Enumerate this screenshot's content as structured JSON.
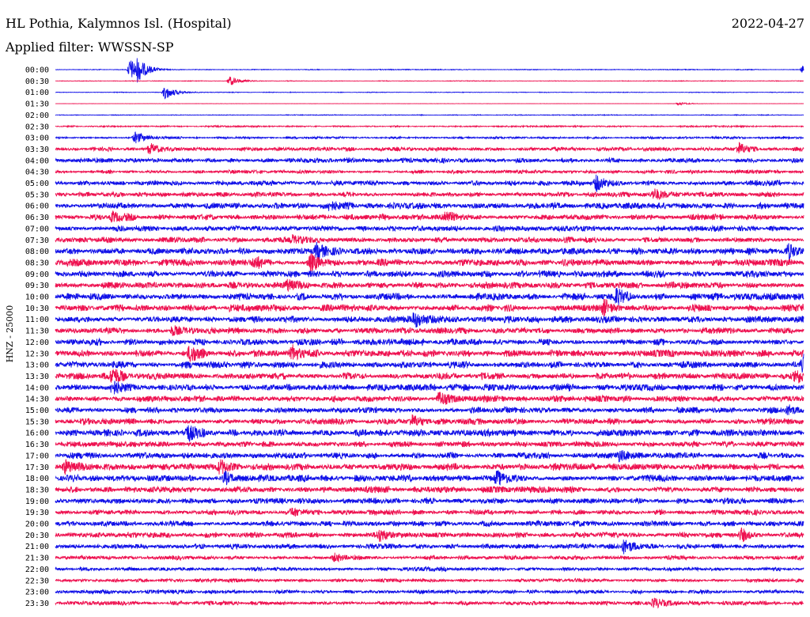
{
  "header": {
    "station": "HL Pothia, Kalymnos Isl. (Hospital)",
    "date": "2022-04-27",
    "filter": "Applied filter: WWSSN-SP"
  },
  "chart_data": {
    "type": "line",
    "title": "HL Pothia, Kalymnos Isl. (Hospital)",
    "ylabel": "HNZ - 25000",
    "rows": [
      "00:00",
      "00:30",
      "01:00",
      "01:30",
      "02:00",
      "02:30",
      "03:00",
      "03:30",
      "04:00",
      "04:30",
      "05:00",
      "05:30",
      "06:00",
      "06:30",
      "07:00",
      "07:30",
      "08:00",
      "08:30",
      "09:00",
      "09:30",
      "10:00",
      "10:30",
      "11:00",
      "11:30",
      "12:00",
      "12:30",
      "13:00",
      "13:30",
      "14:00",
      "14:30",
      "15:00",
      "15:30",
      "16:00",
      "16:30",
      "17:00",
      "17:30",
      "18:00",
      "18:30",
      "19:00",
      "19:30",
      "20:00",
      "20:30",
      "21:00",
      "21:30",
      "22:00",
      "22:30",
      "23:00",
      "23:30"
    ],
    "colors": [
      "#1010e8",
      "#ee1150"
    ],
    "noise_levels": [
      0.3,
      0.25,
      0.25,
      0.1,
      0.3,
      0.6,
      0.9,
      1.6,
      1.9,
      1.5,
      2.0,
      2.0,
      2.5,
      2.4,
      2.2,
      2.4,
      2.6,
      2.8,
      2.6,
      2.6,
      2.8,
      2.9,
      2.8,
      2.4,
      2.6,
      2.9,
      2.8,
      2.8,
      2.7,
      2.5,
      2.4,
      2.5,
      2.7,
      2.3,
      2.5,
      2.8,
      2.7,
      2.5,
      2.3,
      2.0,
      2.3,
      2.2,
      2.0,
      1.7,
      1.6,
      1.5,
      1.6,
      1.6
    ],
    "events": [
      {
        "row": 0,
        "minute": 3.0,
        "amp": 14
      },
      {
        "row": 0,
        "minute": 3.3,
        "amp": 11
      },
      {
        "row": 0,
        "minute": 30.0,
        "amp": 7
      },
      {
        "row": 1,
        "minute": 7.0,
        "amp": 6
      },
      {
        "row": 2,
        "minute": 4.4,
        "amp": 9
      },
      {
        "row": 3,
        "minute": 25.0,
        "amp": 2
      },
      {
        "row": 6,
        "minute": 3.2,
        "amp": 7
      },
      {
        "row": 7,
        "minute": 3.8,
        "amp": 6
      },
      {
        "row": 7,
        "minute": 27.4,
        "amp": 8
      },
      {
        "row": 10,
        "minute": 21.7,
        "amp": 10
      },
      {
        "row": 11,
        "minute": 24.0,
        "amp": 6
      },
      {
        "row": 12,
        "minute": 11.0,
        "amp": 5
      },
      {
        "row": 13,
        "minute": 2.3,
        "amp": 7
      },
      {
        "row": 13,
        "minute": 15.6,
        "amp": 7
      },
      {
        "row": 15,
        "minute": 9.5,
        "amp": 5
      },
      {
        "row": 16,
        "minute": 10.5,
        "amp": 10
      },
      {
        "row": 16,
        "minute": 29.4,
        "amp": 9
      },
      {
        "row": 17,
        "minute": 8.0,
        "amp": 7
      },
      {
        "row": 17,
        "minute": 10.2,
        "amp": 9
      },
      {
        "row": 19,
        "minute": 9.3,
        "amp": 6
      },
      {
        "row": 20,
        "minute": 22.5,
        "amp": 9
      },
      {
        "row": 21,
        "minute": 22.0,
        "amp": 8
      },
      {
        "row": 22,
        "minute": 14.4,
        "amp": 8
      },
      {
        "row": 23,
        "minute": 4.7,
        "amp": 7
      },
      {
        "row": 25,
        "minute": 5.4,
        "amp": 10
      },
      {
        "row": 25,
        "minute": 9.5,
        "amp": 9
      },
      {
        "row": 26,
        "minute": 30.0,
        "amp": 10
      },
      {
        "row": 27,
        "minute": 2.3,
        "amp": 9
      },
      {
        "row": 27,
        "minute": 29.7,
        "amp": 8
      },
      {
        "row": 28,
        "minute": 2.3,
        "amp": 9
      },
      {
        "row": 29,
        "minute": 15.4,
        "amp": 8
      },
      {
        "row": 30,
        "minute": 29.4,
        "amp": 5
      },
      {
        "row": 31,
        "minute": 14.3,
        "amp": 6
      },
      {
        "row": 32,
        "minute": 5.3,
        "amp": 9
      },
      {
        "row": 34,
        "minute": 22.6,
        "amp": 5
      },
      {
        "row": 35,
        "minute": 0.4,
        "amp": 8
      },
      {
        "row": 35,
        "minute": 6.6,
        "amp": 9
      },
      {
        "row": 36,
        "minute": 6.8,
        "amp": 8
      },
      {
        "row": 36,
        "minute": 17.7,
        "amp": 10
      },
      {
        "row": 39,
        "minute": 9.5,
        "amp": 4
      },
      {
        "row": 41,
        "minute": 13.0,
        "amp": 8
      },
      {
        "row": 41,
        "minute": 27.5,
        "amp": 8
      },
      {
        "row": 42,
        "minute": 22.8,
        "amp": 9
      },
      {
        "row": 43,
        "minute": 11.2,
        "amp": 4
      },
      {
        "row": 47,
        "minute": 24.0,
        "amp": 6
      }
    ]
  }
}
